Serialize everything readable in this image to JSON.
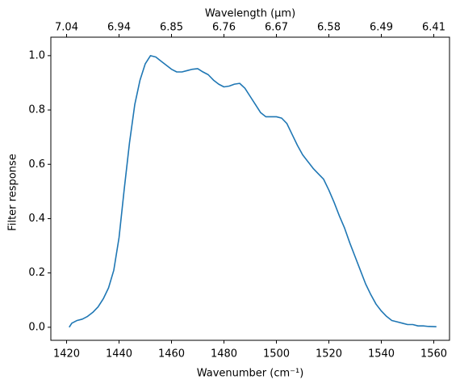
{
  "chart_data": {
    "type": "line",
    "xlabel": "Wavenumber (cm⁻¹)",
    "ylabel": "Filter response",
    "x2label": "Wavelength (μm)",
    "x": [
      1421,
      1422,
      1424,
      1426,
      1428,
      1430,
      1432,
      1434,
      1436,
      1438,
      1440,
      1442,
      1444,
      1446,
      1448,
      1450,
      1452,
      1454,
      1456,
      1458,
      1460,
      1462,
      1464,
      1466,
      1468,
      1470,
      1472,
      1474,
      1476,
      1478,
      1480,
      1482,
      1484,
      1486,
      1488,
      1490,
      1492,
      1494,
      1496,
      1498,
      1500,
      1502,
      1504,
      1506,
      1508,
      1510,
      1512,
      1514,
      1516,
      1518,
      1520,
      1522,
      1524,
      1526,
      1528,
      1530,
      1532,
      1534,
      1536,
      1538,
      1540,
      1542,
      1544,
      1546,
      1548,
      1550,
      1552,
      1554,
      1556,
      1558,
      1561
    ],
    "series": [
      {
        "color": "#1f77b4",
        "values": [
          0.0,
          0.015,
          0.025,
          0.03,
          0.04,
          0.055,
          0.075,
          0.105,
          0.145,
          0.21,
          0.33,
          0.51,
          0.68,
          0.82,
          0.91,
          0.97,
          1.0,
          0.995,
          0.98,
          0.965,
          0.95,
          0.94,
          0.94,
          0.945,
          0.95,
          0.952,
          0.94,
          0.93,
          0.91,
          0.895,
          0.885,
          0.888,
          0.895,
          0.898,
          0.88,
          0.85,
          0.82,
          0.79,
          0.775,
          0.775,
          0.775,
          0.77,
          0.75,
          0.71,
          0.67,
          0.635,
          0.61,
          0.585,
          0.565,
          0.545,
          0.505,
          0.46,
          0.41,
          0.365,
          0.31,
          0.26,
          0.21,
          0.16,
          0.12,
          0.085,
          0.06,
          0.04,
          0.025,
          0.02,
          0.015,
          0.01,
          0.01,
          0.005,
          0.005,
          0.003,
          0.002
        ]
      }
    ],
    "xlim": [
      1414,
      1566
    ],
    "ylim": [
      -0.048,
      1.068
    ],
    "xticks": [
      1420,
      1440,
      1460,
      1480,
      1500,
      1520,
      1540,
      1560
    ],
    "x2ticks": [
      {
        "value": 1420,
        "label": "7.04"
      },
      {
        "value": 1440,
        "label": "6.94"
      },
      {
        "value": 1460,
        "label": "6.85"
      },
      {
        "value": 1480,
        "label": "6.76"
      },
      {
        "value": 1500,
        "label": "6.67"
      },
      {
        "value": 1520,
        "label": "6.58"
      },
      {
        "value": 1540,
        "label": "6.49"
      },
      {
        "value": 1560,
        "label": "6.41"
      }
    ],
    "yticks": [
      {
        "value": 0,
        "label": "0.0"
      },
      0.2,
      0.4,
      0.6,
      0.8,
      {
        "value": 1,
        "label": "1.0"
      }
    ]
  }
}
